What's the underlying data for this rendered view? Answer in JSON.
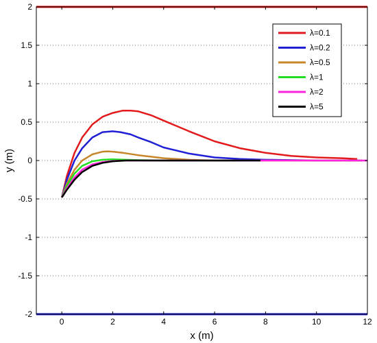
{
  "chart_data": {
    "type": "line",
    "xlabel": "x (m)",
    "ylabel": "y (m)",
    "xlim": [
      -1,
      12
    ],
    "ylim": [
      -2,
      2
    ],
    "xticks": [
      "0",
      "2",
      "4",
      "6",
      "8",
      "10",
      "12"
    ],
    "yticks": [
      "-2",
      "-1.5",
      "-1",
      "-0.5",
      "0",
      "0.5",
      "1",
      "1.5",
      "2"
    ],
    "grid": "dotted-horizontal",
    "legend_position": "top-right",
    "boundaries": [
      {
        "y": 2,
        "color": "#e31a1c"
      },
      {
        "y": -2,
        "color": "#1f1fd6"
      }
    ],
    "series": [
      {
        "name": "λ=0.1",
        "color": "#e31a1c",
        "x": [
          0,
          0.2,
          0.5,
          0.8,
          1.2,
          1.6,
          2.0,
          2.4,
          2.7,
          3.0,
          3.5,
          4.0,
          5.0,
          6.0,
          7.0,
          8.0,
          9.0,
          10.0,
          11.0,
          11.6
        ],
        "y": [
          -0.48,
          -0.2,
          0.1,
          0.3,
          0.47,
          0.57,
          0.62,
          0.65,
          0.65,
          0.64,
          0.59,
          0.52,
          0.38,
          0.25,
          0.16,
          0.1,
          0.06,
          0.04,
          0.03,
          0.02
        ]
      },
      {
        "name": "λ=0.2",
        "color": "#1f1fd6",
        "x": [
          0,
          0.2,
          0.5,
          0.8,
          1.2,
          1.6,
          2.0,
          2.3,
          2.7,
          3.0,
          3.5,
          4.0,
          5.0,
          6.0,
          7.0,
          8.0,
          9.0,
          10.0,
          11.0,
          11.8
        ],
        "y": [
          -0.48,
          -0.25,
          0.0,
          0.16,
          0.3,
          0.37,
          0.38,
          0.37,
          0.34,
          0.3,
          0.24,
          0.17,
          0.09,
          0.04,
          0.02,
          0.01,
          0.005,
          0.0,
          0.0,
          0.0
        ]
      },
      {
        "name": "λ=0.5",
        "color": "#c8862a",
        "x": [
          0,
          0.2,
          0.5,
          0.8,
          1.2,
          1.6,
          1.8,
          2.0,
          2.4,
          3.0,
          3.5,
          4.0,
          5.0,
          6.0,
          7.0,
          8.0,
          9.0,
          10.0,
          11.0,
          11.8
        ],
        "y": [
          -0.48,
          -0.3,
          -0.12,
          0.0,
          0.08,
          0.115,
          0.12,
          0.115,
          0.1,
          0.07,
          0.05,
          0.03,
          0.01,
          0.0,
          0.0,
          0.0,
          0.0,
          0.0,
          0.0,
          0.0
        ]
      },
      {
        "name": "λ=1",
        "color": "#22dd22",
        "x": [
          0,
          0.2,
          0.5,
          0.8,
          1.2,
          1.6,
          2.0,
          2.5,
          3.0,
          4.0,
          5.0,
          6.0,
          7.0,
          7.8
        ],
        "y": [
          -0.48,
          -0.33,
          -0.17,
          -0.07,
          -0.01,
          0.01,
          0.015,
          0.01,
          0.005,
          0.0,
          0.0,
          0.0,
          0.0,
          0.0
        ]
      },
      {
        "name": "λ=2",
        "color": "#ff22dd",
        "x": [
          0,
          0.2,
          0.5,
          0.8,
          1.2,
          1.6,
          2.0,
          2.5,
          3.0,
          4.0,
          5.0,
          6.0,
          7.0,
          8.0,
          9.0,
          10.0,
          11.0,
          12.0
        ],
        "y": [
          -0.48,
          -0.36,
          -0.22,
          -0.12,
          -0.05,
          -0.02,
          -0.005,
          0.0,
          0.0,
          0.0,
          0.0,
          0.0,
          0.0,
          0.0,
          0.0,
          0.0,
          0.0,
          0.0
        ]
      },
      {
        "name": "λ=5",
        "color": "#000000",
        "x": [
          0,
          0.2,
          0.5,
          0.8,
          1.2,
          1.6,
          2.0,
          2.5,
          3.0,
          4.0,
          5.0,
          6.0,
          7.0,
          7.8
        ],
        "y": [
          -0.48,
          -0.38,
          -0.25,
          -0.15,
          -0.07,
          -0.03,
          -0.01,
          0.0,
          0.0,
          0.0,
          0.0,
          0.0,
          0.0,
          0.0
        ]
      }
    ]
  }
}
